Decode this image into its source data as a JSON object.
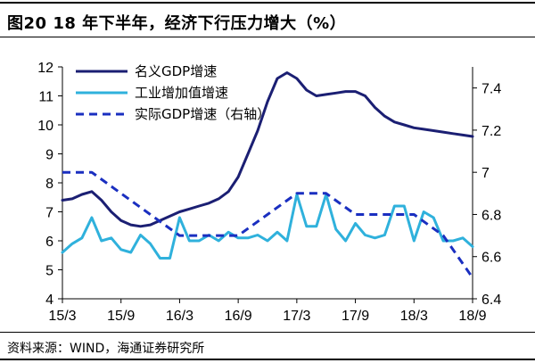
{
  "header": {
    "title": "图20 18 年下半年，经济下行压力增大（%）"
  },
  "footer": {
    "source": "资料来源：WIND，海通证券研究所"
  },
  "colors": {
    "nominal_gdp": "#1b1f73",
    "industrial": "#2fb1dc",
    "real_gdp": "#1a2fc0"
  },
  "chart_data": {
    "type": "line",
    "title": "",
    "xlabel": "",
    "ylabel": "",
    "x_ticks": [
      "15/3",
      "15/9",
      "16/3",
      "16/9",
      "17/3",
      "17/9",
      "18/3",
      "18/9"
    ],
    "left_axis": {
      "range": [
        4,
        12
      ],
      "ticks": [
        "4",
        "5",
        "6",
        "7",
        "8",
        "9",
        "10",
        "11",
        "12"
      ]
    },
    "right_axis": {
      "range": [
        6.4,
        7.5
      ],
      "ticks": [
        "6.4",
        "6.6",
        "6.8",
        "7",
        "7.2",
        "7.4"
      ]
    },
    "legend_position": "top-left, inside plot",
    "grid": false,
    "series": [
      {
        "name": "名义GDP增速",
        "axis": "left",
        "style": "solid",
        "points": [
          [
            "2015-03",
            7.4
          ],
          [
            "2015-04",
            7.45
          ],
          [
            "2015-05",
            7.6
          ],
          [
            "2015-06",
            7.7
          ],
          [
            "2015-07",
            7.4
          ],
          [
            "2015-08",
            7.0
          ],
          [
            "2015-09",
            6.7
          ],
          [
            "2015-10",
            6.55
          ],
          [
            "2015-11",
            6.5
          ],
          [
            "2015-12",
            6.55
          ],
          [
            "2016-01",
            6.7
          ],
          [
            "2016-02",
            6.85
          ],
          [
            "2016-03",
            7.0
          ],
          [
            "2016-04",
            7.1
          ],
          [
            "2016-05",
            7.2
          ],
          [
            "2016-06",
            7.3
          ],
          [
            "2016-07",
            7.45
          ],
          [
            "2016-08",
            7.7
          ],
          [
            "2016-09",
            8.2
          ],
          [
            "2016-10",
            9.0
          ],
          [
            "2016-11",
            9.8
          ],
          [
            "2016-12",
            10.8
          ],
          [
            "2017-01",
            11.6
          ],
          [
            "2017-02",
            11.8
          ],
          [
            "2017-03",
            11.6
          ],
          [
            "2017-04",
            11.2
          ],
          [
            "2017-05",
            11.0
          ],
          [
            "2017-06",
            11.05
          ],
          [
            "2017-07",
            11.1
          ],
          [
            "2017-08",
            11.15
          ],
          [
            "2017-09",
            11.15
          ],
          [
            "2017-10",
            11.0
          ],
          [
            "2017-11",
            10.6
          ],
          [
            "2017-12",
            10.3
          ],
          [
            "2018-01",
            10.1
          ],
          [
            "2018-02",
            10.0
          ],
          [
            "2018-03",
            9.9
          ],
          [
            "2018-04",
            9.85
          ],
          [
            "2018-05",
            9.8
          ],
          [
            "2018-06",
            9.75
          ],
          [
            "2018-07",
            9.7
          ],
          [
            "2018-08",
            9.65
          ],
          [
            "2018-09",
            9.6
          ]
        ]
      },
      {
        "name": "工业增加值增速",
        "axis": "left",
        "style": "solid",
        "points": [
          [
            "2015-03",
            5.6
          ],
          [
            "2015-04",
            5.9
          ],
          [
            "2015-05",
            6.1
          ],
          [
            "2015-06",
            6.8
          ],
          [
            "2015-07",
            6.0
          ],
          [
            "2015-08",
            6.1
          ],
          [
            "2015-09",
            5.7
          ],
          [
            "2015-10",
            5.6
          ],
          [
            "2015-11",
            6.2
          ],
          [
            "2015-12",
            5.9
          ],
          [
            "2016-01",
            5.4
          ],
          [
            "2016-02",
            5.4
          ],
          [
            "2016-03",
            6.8
          ],
          [
            "2016-04",
            6.0
          ],
          [
            "2016-05",
            6.0
          ],
          [
            "2016-06",
            6.2
          ],
          [
            "2016-07",
            6.0
          ],
          [
            "2016-08",
            6.3
          ],
          [
            "2016-09",
            6.1
          ],
          [
            "2016-10",
            6.1
          ],
          [
            "2016-11",
            6.2
          ],
          [
            "2016-12",
            6.0
          ],
          [
            "2017-01",
            6.3
          ],
          [
            "2017-02",
            6.0
          ],
          [
            "2017-03",
            7.6
          ],
          [
            "2017-04",
            6.5
          ],
          [
            "2017-05",
            6.5
          ],
          [
            "2017-06",
            7.6
          ],
          [
            "2017-07",
            6.4
          ],
          [
            "2017-08",
            6.0
          ],
          [
            "2017-09",
            6.6
          ],
          [
            "2017-10",
            6.2
          ],
          [
            "2017-11",
            6.1
          ],
          [
            "2017-12",
            6.2
          ],
          [
            "2018-01",
            7.2
          ],
          [
            "2018-02",
            7.2
          ],
          [
            "2018-03",
            6.0
          ],
          [
            "2018-04",
            7.0
          ],
          [
            "2018-05",
            6.8
          ],
          [
            "2018-06",
            6.0
          ],
          [
            "2018-07",
            6.0
          ],
          [
            "2018-08",
            6.1
          ],
          [
            "2018-09",
            5.8
          ]
        ]
      },
      {
        "name": "实际GDP增速（右轴）",
        "axis": "right",
        "style": "dashed",
        "points": [
          [
            "2015-03",
            7.0
          ],
          [
            "2015-06",
            7.0
          ],
          [
            "2015-09",
            6.9
          ],
          [
            "2015-12",
            6.8
          ],
          [
            "2016-03",
            6.7
          ],
          [
            "2016-06",
            6.7
          ],
          [
            "2016-09",
            6.7
          ],
          [
            "2016-12",
            6.8
          ],
          [
            "2017-03",
            6.9
          ],
          [
            "2017-06",
            6.9
          ],
          [
            "2017-09",
            6.8
          ],
          [
            "2017-12",
            6.8
          ],
          [
            "2018-03",
            6.8
          ],
          [
            "2018-06",
            6.7
          ],
          [
            "2018-09",
            6.5
          ]
        ]
      }
    ]
  }
}
